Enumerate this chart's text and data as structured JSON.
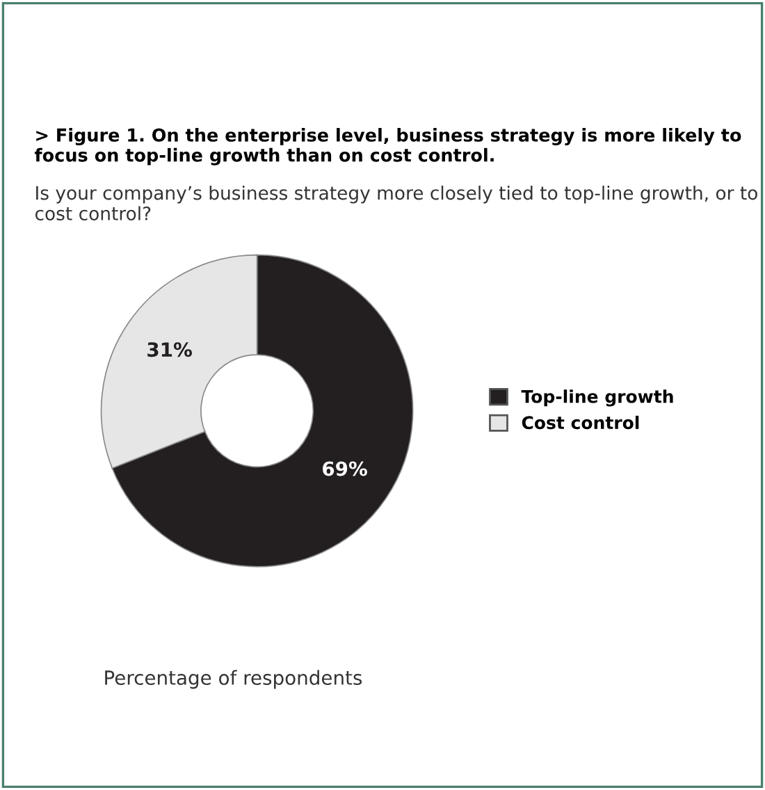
{
  "chart_data": {
    "type": "donut",
    "title": "> Figure 1. On the enterprise level, business strategy is more likely to focus on top-line growth than on cost control.",
    "subtitle": "Is your company’s business strategy more closely tied to top-line growth, or to cost control?",
    "categories": [
      "Top-line growth",
      "Cost control"
    ],
    "values": [
      69,
      31
    ],
    "colors": [
      "#231f20",
      "#e6e6e6"
    ],
    "value_labels": [
      "69%",
      "31%"
    ],
    "legend": "right",
    "annotations": [
      "Percentage of respondents"
    ]
  }
}
